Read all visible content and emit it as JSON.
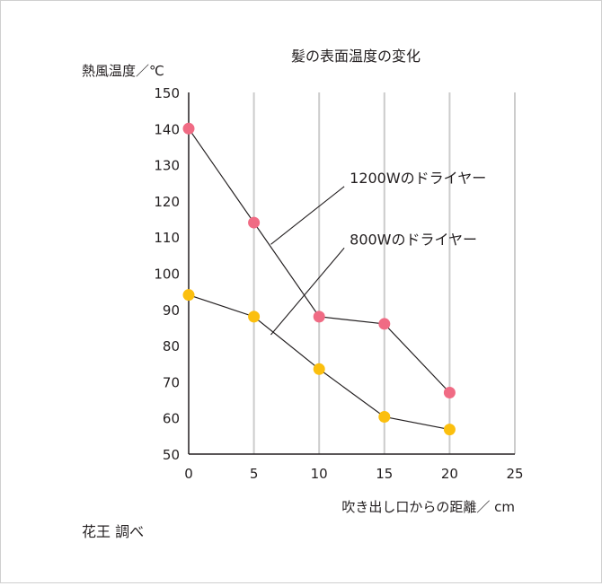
{
  "chart_data": {
    "type": "line",
    "title": "髪の表面温度の変化",
    "ylabel": "熱風温度／℃",
    "xlabel": "吹き出し口からの距離／ cm",
    "source": "花王 調べ",
    "x_ticks": [
      0,
      5,
      10,
      15,
      20,
      25
    ],
    "y_ticks": [
      50,
      60,
      70,
      80,
      90,
      100,
      110,
      120,
      130,
      140,
      150
    ],
    "xlim": [
      0,
      25
    ],
    "ylim": [
      50,
      150
    ],
    "grid": "vertical",
    "series": [
      {
        "name": "1200Wのドライヤー",
        "color": "#f06b84",
        "x": [
          0,
          5,
          10,
          15,
          20
        ],
        "values": [
          140,
          114,
          88,
          86,
          67
        ]
      },
      {
        "name": "800Wのドライヤー",
        "color": "#fbbf0e",
        "x": [
          0,
          5,
          10,
          15,
          20
        ],
        "values": [
          94,
          88,
          73.5,
          60.3,
          56.8
        ]
      }
    ],
    "annotations": [
      {
        "series": 0,
        "text": "1200Wのドライヤー",
        "label_x": 12.2,
        "label_y": 124,
        "point_x": 6.3,
        "point_y": 108
      },
      {
        "series": 1,
        "text": "800Wのドライヤー",
        "label_x": 12.2,
        "label_y": 107,
        "point_x": 6.3,
        "point_y": 83
      }
    ]
  }
}
